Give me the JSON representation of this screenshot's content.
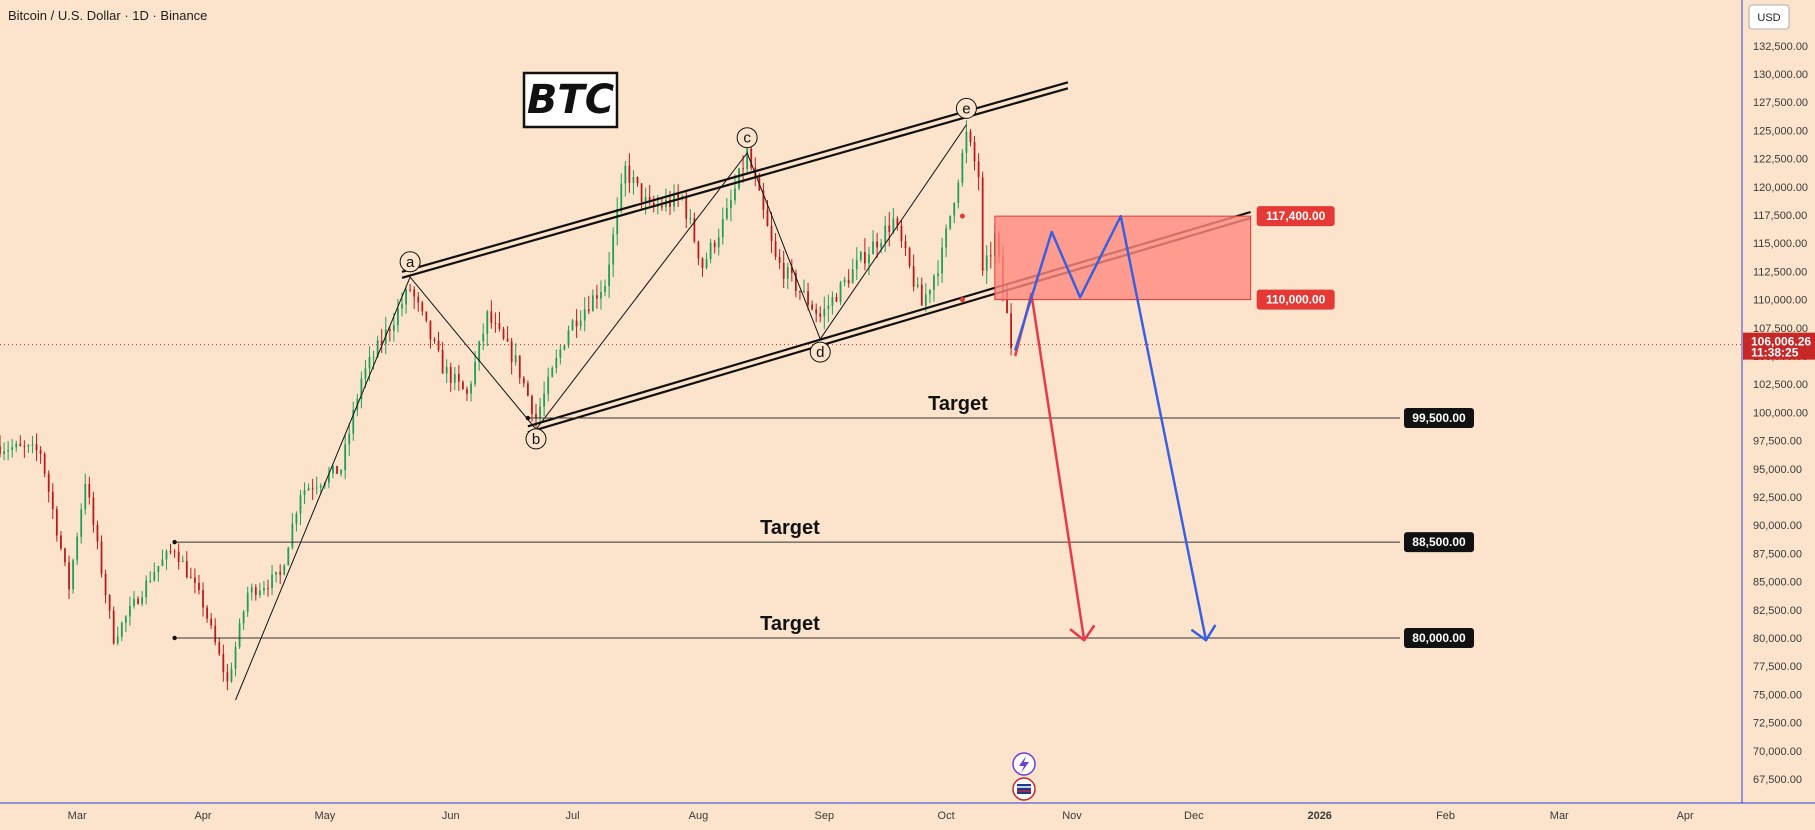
{
  "header": {
    "symbol": "Bitcoin / U.S. Dollar · 1D · Binance",
    "currency": "USD"
  },
  "title_box": "BTC",
  "colors": {
    "background": "#fce4cc",
    "bull": "#1e9e5a",
    "bear": "#b81c1c",
    "red_projection": "#e8394a",
    "blue_projection": "#3a5fe0",
    "zone": "#ff8a80",
    "badge_red": "#e53935",
    "badge_black": "#111111"
  },
  "chart_data": {
    "type": "candlestick",
    "instrument": "BTCUSD",
    "interval": "1D",
    "ylim": [
      66000,
      135000
    ],
    "y_ticks": [
      67500,
      70000,
      72500,
      75000,
      77500,
      80000,
      82500,
      85000,
      87500,
      90000,
      92500,
      95000,
      97500,
      100000,
      102500,
      105000,
      107500,
      110000,
      112500,
      115000,
      117500,
      120000,
      122500,
      125000,
      127500,
      130000,
      132500
    ],
    "y_tick_labels": [
      "67,500.00",
      "70,000.00",
      "72,500.00",
      "75,000.00",
      "77,500.00",
      "80,000.00",
      "82,500.00",
      "85,000.00",
      "87,500.00",
      "90,000.00",
      "92,500.00",
      "95,000.00",
      "97,500.00",
      "100,000.00",
      "102,500.00",
      "105,000.00",
      "107,500.00",
      "110,000.00",
      "112,500.00",
      "115,000.00",
      "117,500.00",
      "120,000.00",
      "122,500.00",
      "125,000.00",
      "127,500.00",
      "130,000.00",
      "132,500.00"
    ],
    "x_range": [
      "2025-02-10",
      "2026-04-15"
    ],
    "x_ticks": [
      {
        "date": "2025-03-01",
        "label": "Mar"
      },
      {
        "date": "2025-04-01",
        "label": "Apr"
      },
      {
        "date": "2025-05-01",
        "label": "May"
      },
      {
        "date": "2025-06-01",
        "label": "Jun"
      },
      {
        "date": "2025-07-01",
        "label": "Jul"
      },
      {
        "date": "2025-08-01",
        "label": "Aug"
      },
      {
        "date": "2025-09-01",
        "label": "Sep"
      },
      {
        "date": "2025-10-01",
        "label": "Oct"
      },
      {
        "date": "2025-11-01",
        "label": "Nov"
      },
      {
        "date": "2025-12-01",
        "label": "Dec"
      },
      {
        "date": "2026-01-01",
        "label": "2026"
      },
      {
        "date": "2026-02-01",
        "label": "Feb"
      },
      {
        "date": "2026-03-01",
        "label": "Mar"
      },
      {
        "date": "2026-04-01",
        "label": "Apr"
      }
    ],
    "price_path": [
      [
        "2025-02-10",
        97000
      ],
      [
        "2025-02-20",
        96500
      ],
      [
        "2025-02-27",
        84500
      ],
      [
        "2025-03-03",
        94000
      ],
      [
        "2025-03-10",
        80000
      ],
      [
        "2025-03-20",
        86000
      ],
      [
        "2025-03-25",
        88000
      ],
      [
        "2025-04-01",
        83000
      ],
      [
        "2025-04-07",
        76000
      ],
      [
        "2025-04-12",
        84000
      ],
      [
        "2025-04-20",
        85500
      ],
      [
        "2025-04-25",
        93000
      ],
      [
        "2025-05-05",
        95000
      ],
      [
        "2025-05-10",
        103000
      ],
      [
        "2025-05-22",
        111000
      ],
      [
        "2025-05-30",
        104000
      ],
      [
        "2025-06-05",
        101500
      ],
      [
        "2025-06-10",
        108500
      ],
      [
        "2025-06-17",
        104500
      ],
      [
        "2025-06-22",
        99500
      ],
      [
        "2025-06-30",
        107500
      ],
      [
        "2025-07-09",
        111500
      ],
      [
        "2025-07-14",
        121500
      ],
      [
        "2025-07-20",
        118000
      ],
      [
        "2025-07-28",
        119000
      ],
      [
        "2025-08-02",
        113000
      ],
      [
        "2025-08-08",
        117500
      ],
      [
        "2025-08-13",
        123000
      ],
      [
        "2025-08-20",
        113500
      ],
      [
        "2025-08-31",
        108500
      ],
      [
        "2025-09-10",
        113500
      ],
      [
        "2025-09-18",
        117000
      ],
      [
        "2025-09-25",
        109500
      ],
      [
        "2025-09-30",
        114000
      ],
      [
        "2025-10-06",
        124500
      ],
      [
        "2025-10-09",
        121000
      ],
      [
        "2025-10-10",
        112000
      ],
      [
        "2025-10-13",
        115500
      ],
      [
        "2025-10-16",
        108500
      ],
      [
        "2025-10-17",
        106006
      ]
    ],
    "current_price": {
      "value": 106006.26,
      "label": "106,006.26",
      "countdown": "11:38:25"
    },
    "wave_labels": [
      {
        "label": "a",
        "date": "2025-05-22",
        "price": 112200,
        "pos": "above"
      },
      {
        "label": "b",
        "date": "2025-06-22",
        "price": 98800,
        "pos": "below"
      },
      {
        "label": "c",
        "date": "2025-08-13",
        "price": 123200,
        "pos": "above"
      },
      {
        "label": "d",
        "date": "2025-08-31",
        "price": 106500,
        "pos": "below"
      },
      {
        "label": "e",
        "date": "2025-10-06",
        "price": 125800,
        "pos": "above"
      }
    ],
    "wave_path": [
      [
        "2025-04-09",
        74500
      ],
      [
        "2025-05-22",
        112000
      ],
      [
        "2025-06-22",
        98500
      ],
      [
        "2025-08-13",
        123000
      ],
      [
        "2025-08-31",
        106500
      ],
      [
        "2025-10-06",
        125500
      ]
    ],
    "channel_upper": [
      [
        "2025-05-20",
        112200
      ],
      [
        "2025-10-31",
        129000
      ]
    ],
    "channel_lower": [
      [
        "2025-06-20",
        98500
      ],
      [
        "2025-12-15",
        117500
      ]
    ],
    "zone": {
      "from_date": "2025-10-13",
      "to_date": "2025-12-15",
      "top": 117400,
      "bottom": 110000,
      "top_label": "117,400.00",
      "bottom_label": "110,000.00"
    },
    "targets": [
      {
        "label": "Target",
        "value": 99500,
        "value_label": "99,500.00",
        "start": "2025-06-20"
      },
      {
        "label": "Target",
        "value": 88500,
        "value_label": "88,500.00",
        "start": "2025-03-25"
      },
      {
        "label": "Target",
        "value": 80000,
        "value_label": "80,000.00",
        "start": "2025-03-25"
      }
    ],
    "projection_red": [
      [
        "2025-10-18",
        105000
      ],
      [
        "2025-10-22",
        110500
      ],
      [
        "2025-11-04",
        79800
      ]
    ],
    "projection_blue": [
      [
        "2025-10-18",
        105500
      ],
      [
        "2025-10-27",
        116000
      ],
      [
        "2025-11-03",
        110200
      ],
      [
        "2025-11-13",
        117400
      ],
      [
        "2025-12-04",
        79800
      ]
    ]
  }
}
